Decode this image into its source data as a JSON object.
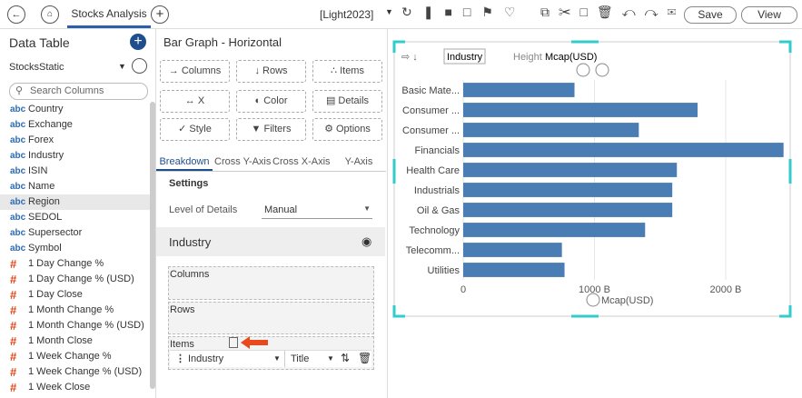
{
  "toolbar": {
    "tab": "Stocks Analysis",
    "theme": "[Light2023]",
    "save": "Save",
    "view": "View"
  },
  "data_table": {
    "title": "Data Table",
    "source": "StocksStatic",
    "search_placeholder": "Search Columns",
    "columns": [
      {
        "type": "abc",
        "name": "Country"
      },
      {
        "type": "abc",
        "name": "Exchange"
      },
      {
        "type": "abc",
        "name": "Forex"
      },
      {
        "type": "abc",
        "name": "Industry"
      },
      {
        "type": "abc",
        "name": "ISIN"
      },
      {
        "type": "abc",
        "name": "Name"
      },
      {
        "type": "abc",
        "name": "Region"
      },
      {
        "type": "abc",
        "name": "SEDOL"
      },
      {
        "type": "abc",
        "name": "Supersector"
      },
      {
        "type": "abc",
        "name": "Symbol"
      },
      {
        "type": "#",
        "name": "1 Day Change %"
      },
      {
        "type": "#",
        "name": "1 Day Change % (USD)"
      },
      {
        "type": "#",
        "name": "1 Day Close"
      },
      {
        "type": "#",
        "name": "1 Month Change %"
      },
      {
        "type": "#",
        "name": "1 Month Change % (USD)"
      },
      {
        "type": "#",
        "name": "1 Month Close"
      },
      {
        "type": "#",
        "name": "1 Week Change %"
      },
      {
        "type": "#",
        "name": "1 Week Change % (USD)"
      },
      {
        "type": "#",
        "name": "1 Week Close"
      }
    ]
  },
  "settings": {
    "title": "Bar Graph - Horizontal",
    "buttons": [
      "Columns",
      "Rows",
      "Items",
      "X",
      "Color",
      "Details",
      "Style",
      "Filters",
      "Options"
    ],
    "tabs": [
      "Breakdown",
      "Cross Y-Axis",
      "Cross X-Axis",
      "Y-Axis"
    ],
    "section": "Settings",
    "level_label": "Level of Details",
    "level_value": "Manual",
    "breakdown": "Industry",
    "drop_columns": "Columns",
    "drop_rows": "Rows",
    "drop_items": "Items",
    "item_field": "Industry",
    "item_title": "Title"
  },
  "chart_toolbar": {
    "field": "Industry",
    "height_label": "Height",
    "height_value": "Mcap(USD)"
  },
  "chart_data": {
    "type": "barh",
    "categories": [
      "Basic Mate...",
      "Consumer ...",
      "Consumer ...",
      "Financials",
      "Health Care",
      "Industrials",
      "Oil & Gas",
      "Technology",
      "Telecomm...",
      "Utilities"
    ],
    "values": [
      848,
      1786,
      1338,
      2441,
      1628,
      1593,
      1593,
      1386,
      752,
      772
    ],
    "color": "#4a7db3",
    "xlim": [
      0,
      2450
    ],
    "xticks": [
      0,
      {
        "value": 1000,
        "label": "1000 B"
      },
      {
        "value": 2000,
        "label": "2000 B"
      }
    ],
    "xlabel": "Mcap(USD)",
    "grid": true
  }
}
